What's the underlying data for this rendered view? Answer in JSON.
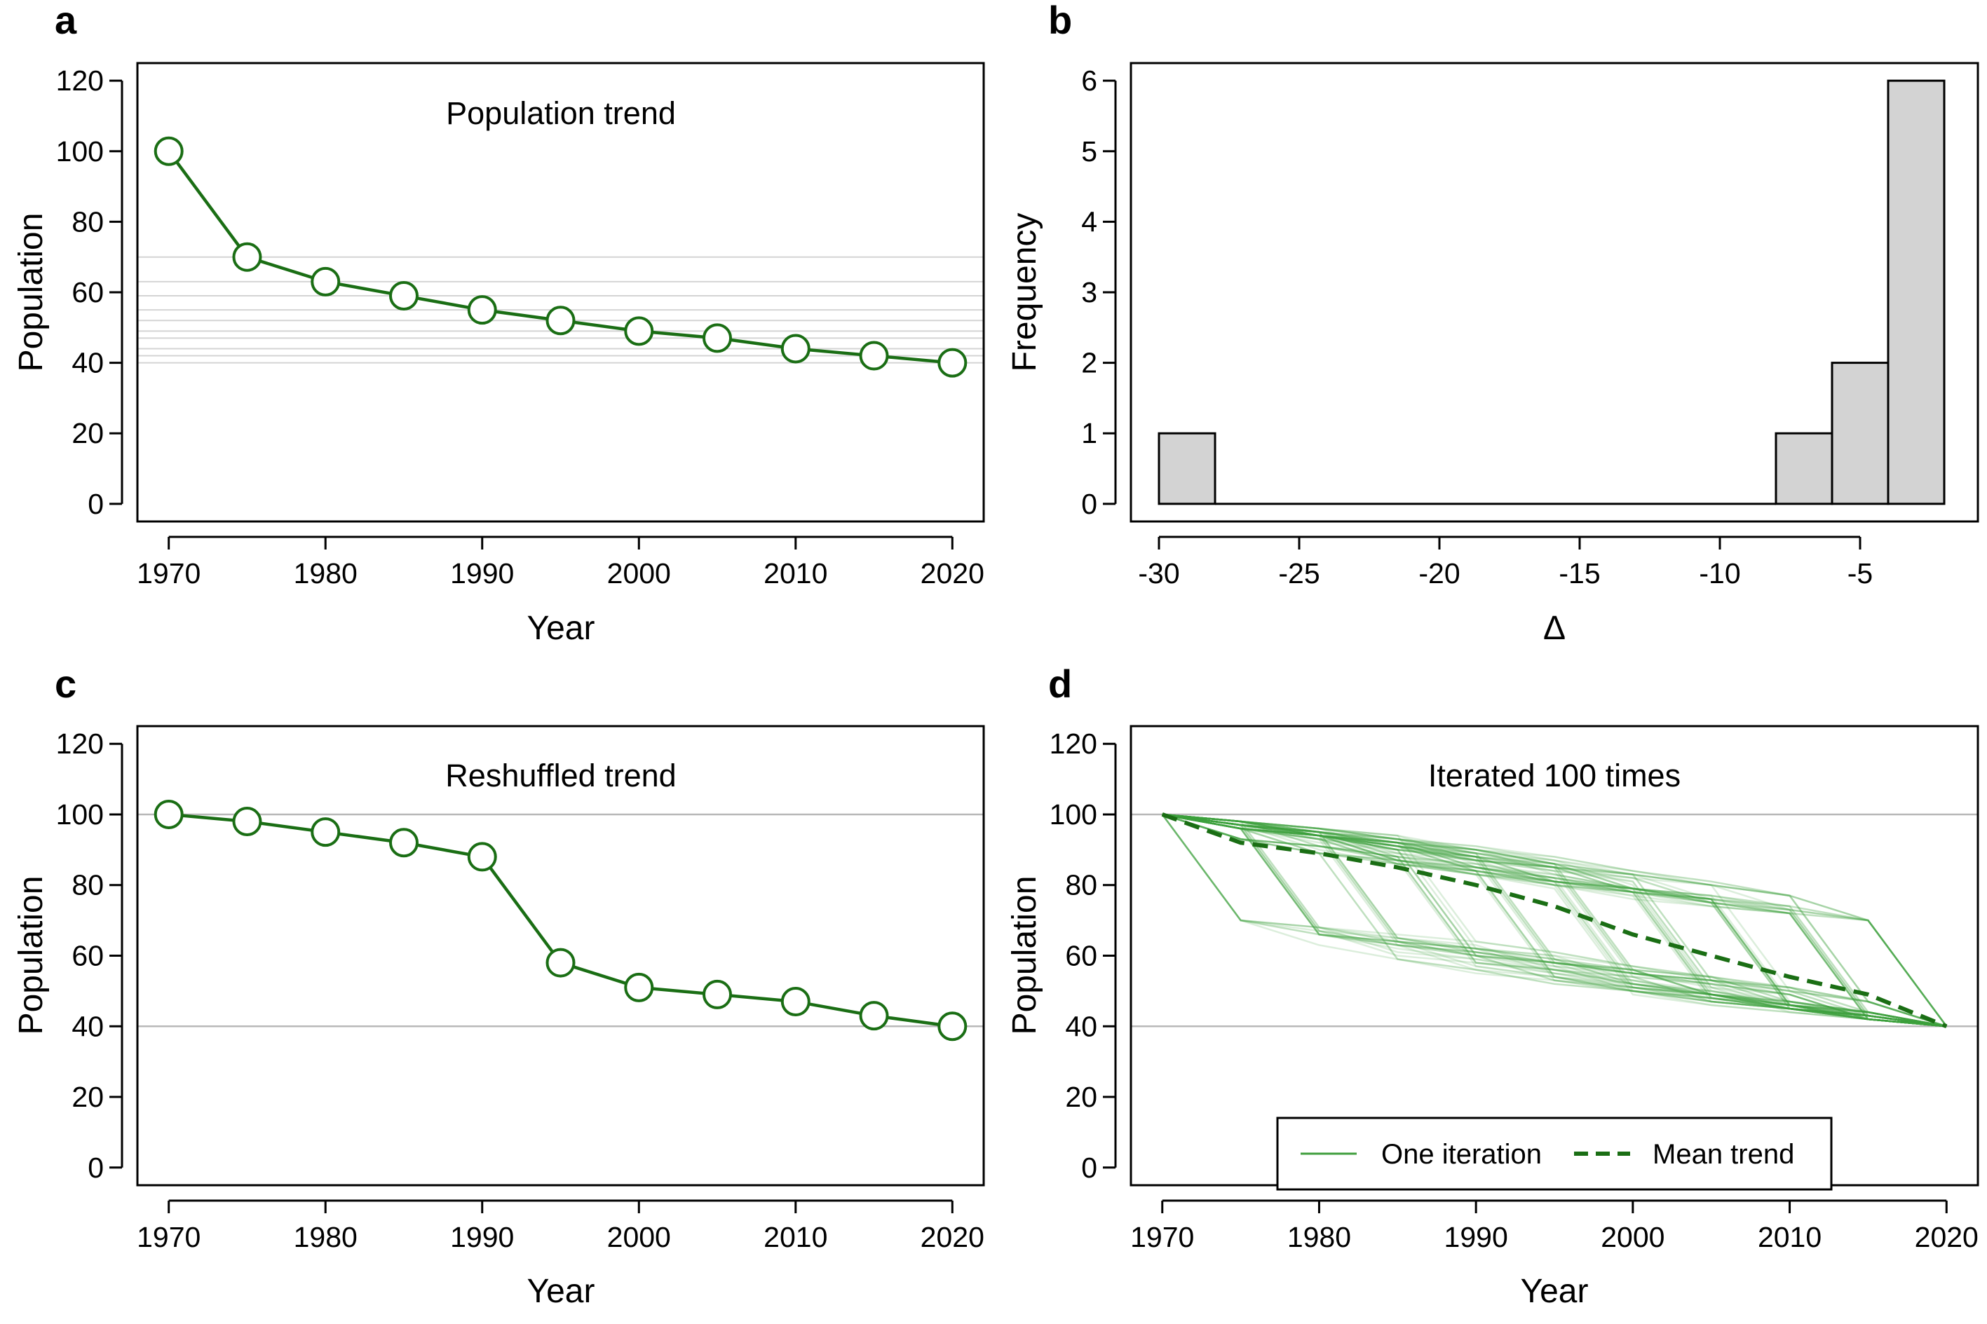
{
  "chart_data": [
    {
      "panel": "a",
      "type": "line",
      "title": "Population trend",
      "xlabel": "Year",
      "ylabel": "Population",
      "xlim": [
        1968,
        2022
      ],
      "ylim": [
        -5,
        125
      ],
      "xticks": [
        1970,
        1980,
        1990,
        2000,
        2010,
        2020
      ],
      "yticks": [
        0,
        20,
        40,
        60,
        80,
        100,
        120
      ],
      "series": [
        {
          "x": [
            1970,
            1975,
            1980,
            1985,
            1990,
            1995,
            2000,
            2005,
            2010,
            2015,
            2020
          ],
          "values": [
            100,
            70,
            63,
            59,
            55,
            52,
            49,
            47,
            44,
            42,
            40
          ],
          "color": "#1a6e14",
          "markers": "open-circle"
        }
      ],
      "reference_lines": "horizontal grey lines at each point value"
    },
    {
      "panel": "b",
      "type": "bar",
      "title": "",
      "xlabel": "Δ",
      "ylabel": "Frequency",
      "xlim": [
        -31,
        -0.8
      ],
      "ylim": [
        -0.25,
        6.25
      ],
      "xticks": [
        -30,
        -25,
        -20,
        -15,
        -10,
        -5
      ],
      "yticks": [
        0,
        1,
        2,
        3,
        4,
        5,
        6
      ],
      "bin_edges": [
        -30,
        -28,
        -26,
        -24,
        -22,
        -20,
        -18,
        -16,
        -14,
        -12,
        -10,
        -8,
        -6,
        -4,
        -2
      ],
      "values": [
        1,
        0,
        0,
        0,
        0,
        0,
        0,
        0,
        0,
        0,
        0,
        1,
        2,
        6
      ],
      "bar_color": "#d3d3d3"
    },
    {
      "panel": "c",
      "type": "line",
      "title": "Reshuffled trend",
      "xlabel": "Year",
      "ylabel": "Population",
      "xlim": [
        1968,
        2022
      ],
      "ylim": [
        -5,
        125
      ],
      "xticks": [
        1970,
        1980,
        1990,
        2000,
        2010,
        2020
      ],
      "yticks": [
        0,
        20,
        40,
        60,
        80,
        100,
        120
      ],
      "series": [
        {
          "x": [
            1970,
            1975,
            1980,
            1985,
            1990,
            1995,
            2000,
            2005,
            2010,
            2015,
            2020
          ],
          "values": [
            100,
            98,
            95,
            92,
            88,
            58,
            51,
            49,
            47,
            43,
            40
          ],
          "color": "#1a6e14",
          "markers": "open-circle"
        }
      ],
      "reference_lines": [
        100,
        40
      ]
    },
    {
      "panel": "d",
      "type": "line",
      "title": "Iterated 100 times",
      "xlabel": "Year",
      "ylabel": "Population",
      "xlim": [
        1968,
        2022
      ],
      "ylim": [
        -5,
        125
      ],
      "xticks": [
        1970,
        1980,
        1990,
        2000,
        2010,
        2020
      ],
      "yticks": [
        0,
        20,
        40,
        60,
        80,
        100,
        120
      ],
      "iterations": 100,
      "iteration_deltas": [
        -30,
        -7,
        -4,
        -4,
        -3,
        -3,
        -2,
        -3,
        -2,
        -2
      ],
      "iteration_color": "#3f9e3c",
      "series": [
        {
          "name": "Mean trend",
          "x": [
            1970,
            1975,
            1980,
            1985,
            1990,
            1995,
            2000,
            2005,
            2010,
            2015,
            2020
          ],
          "values": [
            100,
            92,
            89,
            85,
            80,
            74,
            66,
            60,
            54,
            49,
            40
          ],
          "color": "#1a6e14",
          "style": "dashed"
        }
      ],
      "reference_lines": [
        100,
        40
      ],
      "legend": {
        "position": "bottom",
        "entries": [
          {
            "label": "One iteration",
            "style": "solid",
            "color": "#3f9e3c"
          },
          {
            "label": "Mean trend",
            "style": "dashed",
            "color": "#1a6e14"
          }
        ]
      }
    }
  ]
}
